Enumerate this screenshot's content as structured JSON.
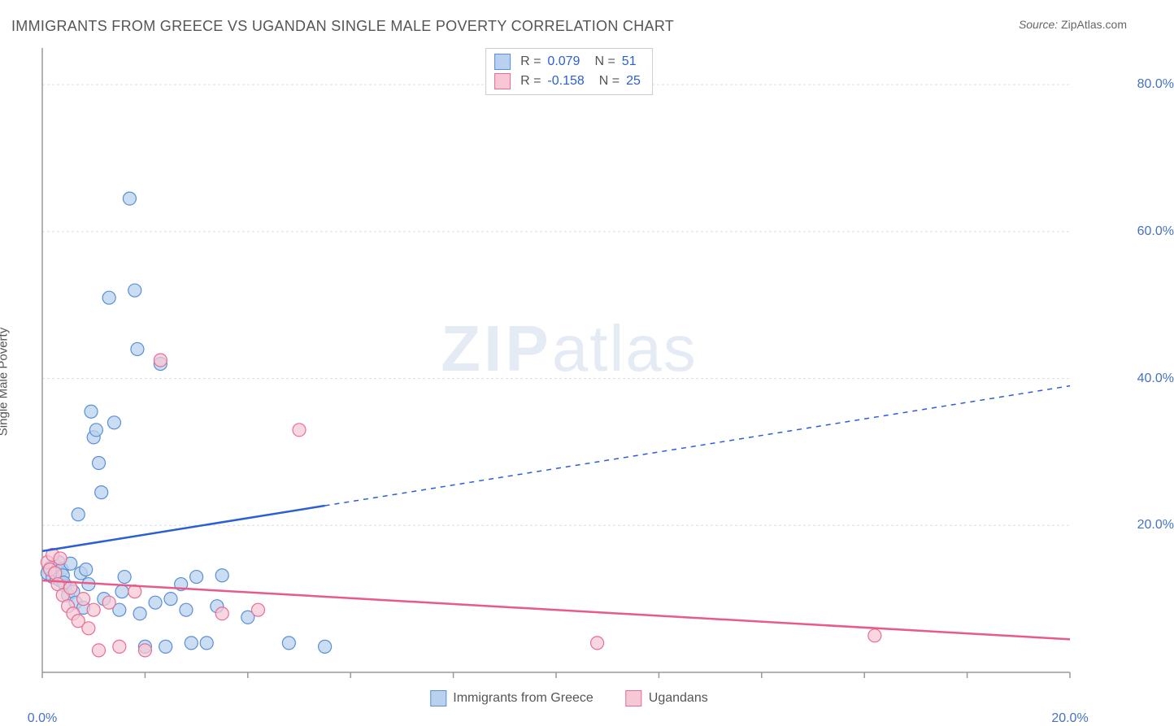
{
  "title": "IMMIGRANTS FROM GREECE VS UGANDAN SINGLE MALE POVERTY CORRELATION CHART",
  "source_label": "Source:",
  "source_value": "ZipAtlas.com",
  "y_axis_label": "Single Male Poverty",
  "watermark_zip": "ZIP",
  "watermark_atlas": "atlas",
  "chart": {
    "type": "scatter",
    "xlim": [
      0,
      20
    ],
    "ylim": [
      0,
      85
    ],
    "x_ticks": [
      0,
      2,
      4,
      6,
      8,
      10,
      12,
      14,
      16,
      18,
      20
    ],
    "x_tick_labels": {
      "0": "0.0%",
      "20": "20.0%"
    },
    "y_gridlines": [
      20,
      40,
      60,
      80
    ],
    "y_tick_labels": {
      "20": "20.0%",
      "40": "40.0%",
      "60": "60.0%",
      "80": "80.0%"
    },
    "background_color": "#ffffff",
    "grid_color": "#dddddd",
    "axis_color": "#999999",
    "marker_radius": 8,
    "marker_stroke_width": 1.2,
    "series": [
      {
        "name": "Immigrants from Greece",
        "fill": "#b9d1ee",
        "stroke": "#5a8fd6",
        "opacity": 0.75,
        "points": [
          [
            0.1,
            13.5
          ],
          [
            0.15,
            14.2
          ],
          [
            0.2,
            13.0
          ],
          [
            0.25,
            14.5
          ],
          [
            0.28,
            12.8
          ],
          [
            0.3,
            13.8
          ],
          [
            0.32,
            15.0
          ],
          [
            0.35,
            12.5
          ],
          [
            0.38,
            14.0
          ],
          [
            0.4,
            13.2
          ],
          [
            0.45,
            11.8
          ],
          [
            0.5,
            10.5
          ],
          [
            0.55,
            14.8
          ],
          [
            0.6,
            11.0
          ],
          [
            0.65,
            9.5
          ],
          [
            0.7,
            21.5
          ],
          [
            0.75,
            13.5
          ],
          [
            0.8,
            8.8
          ],
          [
            0.85,
            14.0
          ],
          [
            0.9,
            12.0
          ],
          [
            0.95,
            35.5
          ],
          [
            1.0,
            32.0
          ],
          [
            1.05,
            33.0
          ],
          [
            1.1,
            28.5
          ],
          [
            1.15,
            24.5
          ],
          [
            1.2,
            10.0
          ],
          [
            1.3,
            51.0
          ],
          [
            1.4,
            34.0
          ],
          [
            1.5,
            8.5
          ],
          [
            1.55,
            11.0
          ],
          [
            1.6,
            13.0
          ],
          [
            1.7,
            64.5
          ],
          [
            1.8,
            52.0
          ],
          [
            1.85,
            44.0
          ],
          [
            1.9,
            8.0
          ],
          [
            2.0,
            3.5
          ],
          [
            2.2,
            9.5
          ],
          [
            2.3,
            42.0
          ],
          [
            2.4,
            3.5
          ],
          [
            2.5,
            10.0
          ],
          [
            2.7,
            12.0
          ],
          [
            2.8,
            8.5
          ],
          [
            2.9,
            4.0
          ],
          [
            3.0,
            13.0
          ],
          [
            3.2,
            4.0
          ],
          [
            3.4,
            9.0
          ],
          [
            3.5,
            13.2
          ],
          [
            4.0,
            7.5
          ],
          [
            4.8,
            4.0
          ],
          [
            5.5,
            3.5
          ],
          [
            0.42,
            12.2
          ]
        ]
      },
      {
        "name": "Ugandans",
        "fill": "#f6c7d4",
        "stroke": "#e76d94",
        "opacity": 0.72,
        "points": [
          [
            0.1,
            15.0
          ],
          [
            0.15,
            14.0
          ],
          [
            0.2,
            16.0
          ],
          [
            0.25,
            13.5
          ],
          [
            0.3,
            12.0
          ],
          [
            0.35,
            15.5
          ],
          [
            0.4,
            10.5
          ],
          [
            0.5,
            9.0
          ],
          [
            0.55,
            11.5
          ],
          [
            0.6,
            8.0
          ],
          [
            0.7,
            7.0
          ],
          [
            0.8,
            10.0
          ],
          [
            0.9,
            6.0
          ],
          [
            1.0,
            8.5
          ],
          [
            1.1,
            3.0
          ],
          [
            1.3,
            9.5
          ],
          [
            1.5,
            3.5
          ],
          [
            1.8,
            11.0
          ],
          [
            2.0,
            3.0
          ],
          [
            2.3,
            42.5
          ],
          [
            3.5,
            8.0
          ],
          [
            4.2,
            8.5
          ],
          [
            5.0,
            33.0
          ],
          [
            10.8,
            4.0
          ],
          [
            16.2,
            5.0
          ]
        ]
      }
    ],
    "trend_lines": [
      {
        "series": "Immigrants from Greece",
        "color": "#2b5fd6",
        "width": 2.5,
        "solid_end_x": 5.5,
        "y_start": 16.5,
        "y_end": 39.0,
        "dash": "6,6"
      },
      {
        "series": "Ugandans",
        "color": "#e85b87",
        "width": 2.5,
        "solid_end_x": 20,
        "y_start": 12.5,
        "y_end": 4.5,
        "dash": "none"
      }
    ]
  },
  "stats_legend": [
    {
      "fill": "#b9d1ee",
      "stroke": "#5a8fd6",
      "r_label": "R  =",
      "r_value": "0.079",
      "r_color": "#2b5fd6",
      "n_label": "N  =",
      "n_value": "51",
      "n_color": "#2b5fd6"
    },
    {
      "fill": "#f6c7d4",
      "stroke": "#e76d94",
      "r_label": "R  =",
      "r_value": "-0.158",
      "r_color": "#2b5fd6",
      "n_label": "N  =",
      "n_value": "25",
      "n_color": "#2b5fd6"
    }
  ],
  "bottom_legend": [
    {
      "fill": "#b9d1ee",
      "stroke": "#5a8fd6",
      "label": "Immigrants from Greece"
    },
    {
      "fill": "#f6c7d4",
      "stroke": "#e76d94",
      "label": "Ugandans"
    }
  ]
}
